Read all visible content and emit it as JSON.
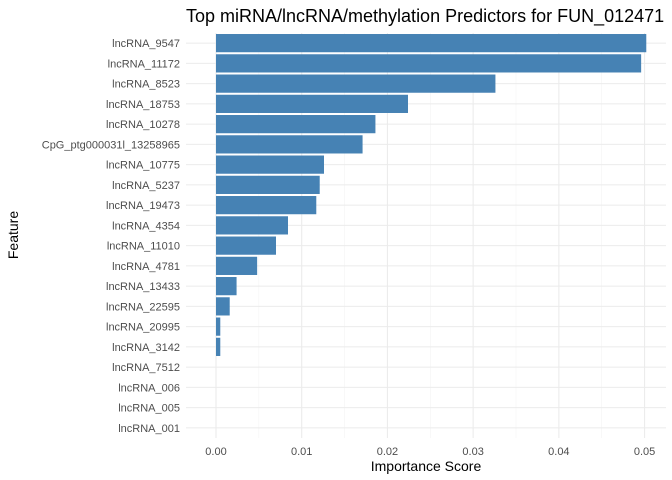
{
  "chart_data": {
    "type": "bar",
    "orientation": "horizontal",
    "title": "Top miRNA/lncRNA/methylation Predictors for FUN_012471",
    "xlabel": "Importance Score",
    "ylabel": "Feature",
    "xlim": [
      -0.0035,
      0.0525
    ],
    "xticks": [
      0.0,
      0.01,
      0.02,
      0.03,
      0.04,
      0.05
    ],
    "xtick_labels": [
      "0.00",
      "0.01",
      "0.02",
      "0.03",
      "0.04",
      "0.05"
    ],
    "grid": true,
    "legend": "none",
    "bar_color": "#4682b4",
    "categories": [
      "lncRNA_9547",
      "lncRNA_11172",
      "lncRNA_8523",
      "lncRNA_18753",
      "lncRNA_10278",
      "CpG_ptg000031l_13258965",
      "lncRNA_10775",
      "lncRNA_5237",
      "lncRNA_19473",
      "lncRNA_4354",
      "lncRNA_11010",
      "lncRNA_4781",
      "lncRNA_13433",
      "lncRNA_22595",
      "lncRNA_20995",
      "lncRNA_3142",
      "lncRNA_7512",
      "lncRNA_006",
      "lncRNA_005",
      "lncRNA_001"
    ],
    "values": [
      0.0502,
      0.0496,
      0.0326,
      0.0224,
      0.0186,
      0.0171,
      0.0126,
      0.0121,
      0.0117,
      0.0084,
      0.007,
      0.0048,
      0.0024,
      0.0016,
      0.0005,
      0.0005,
      0.0,
      0.0,
      0.0,
      0.0
    ]
  }
}
